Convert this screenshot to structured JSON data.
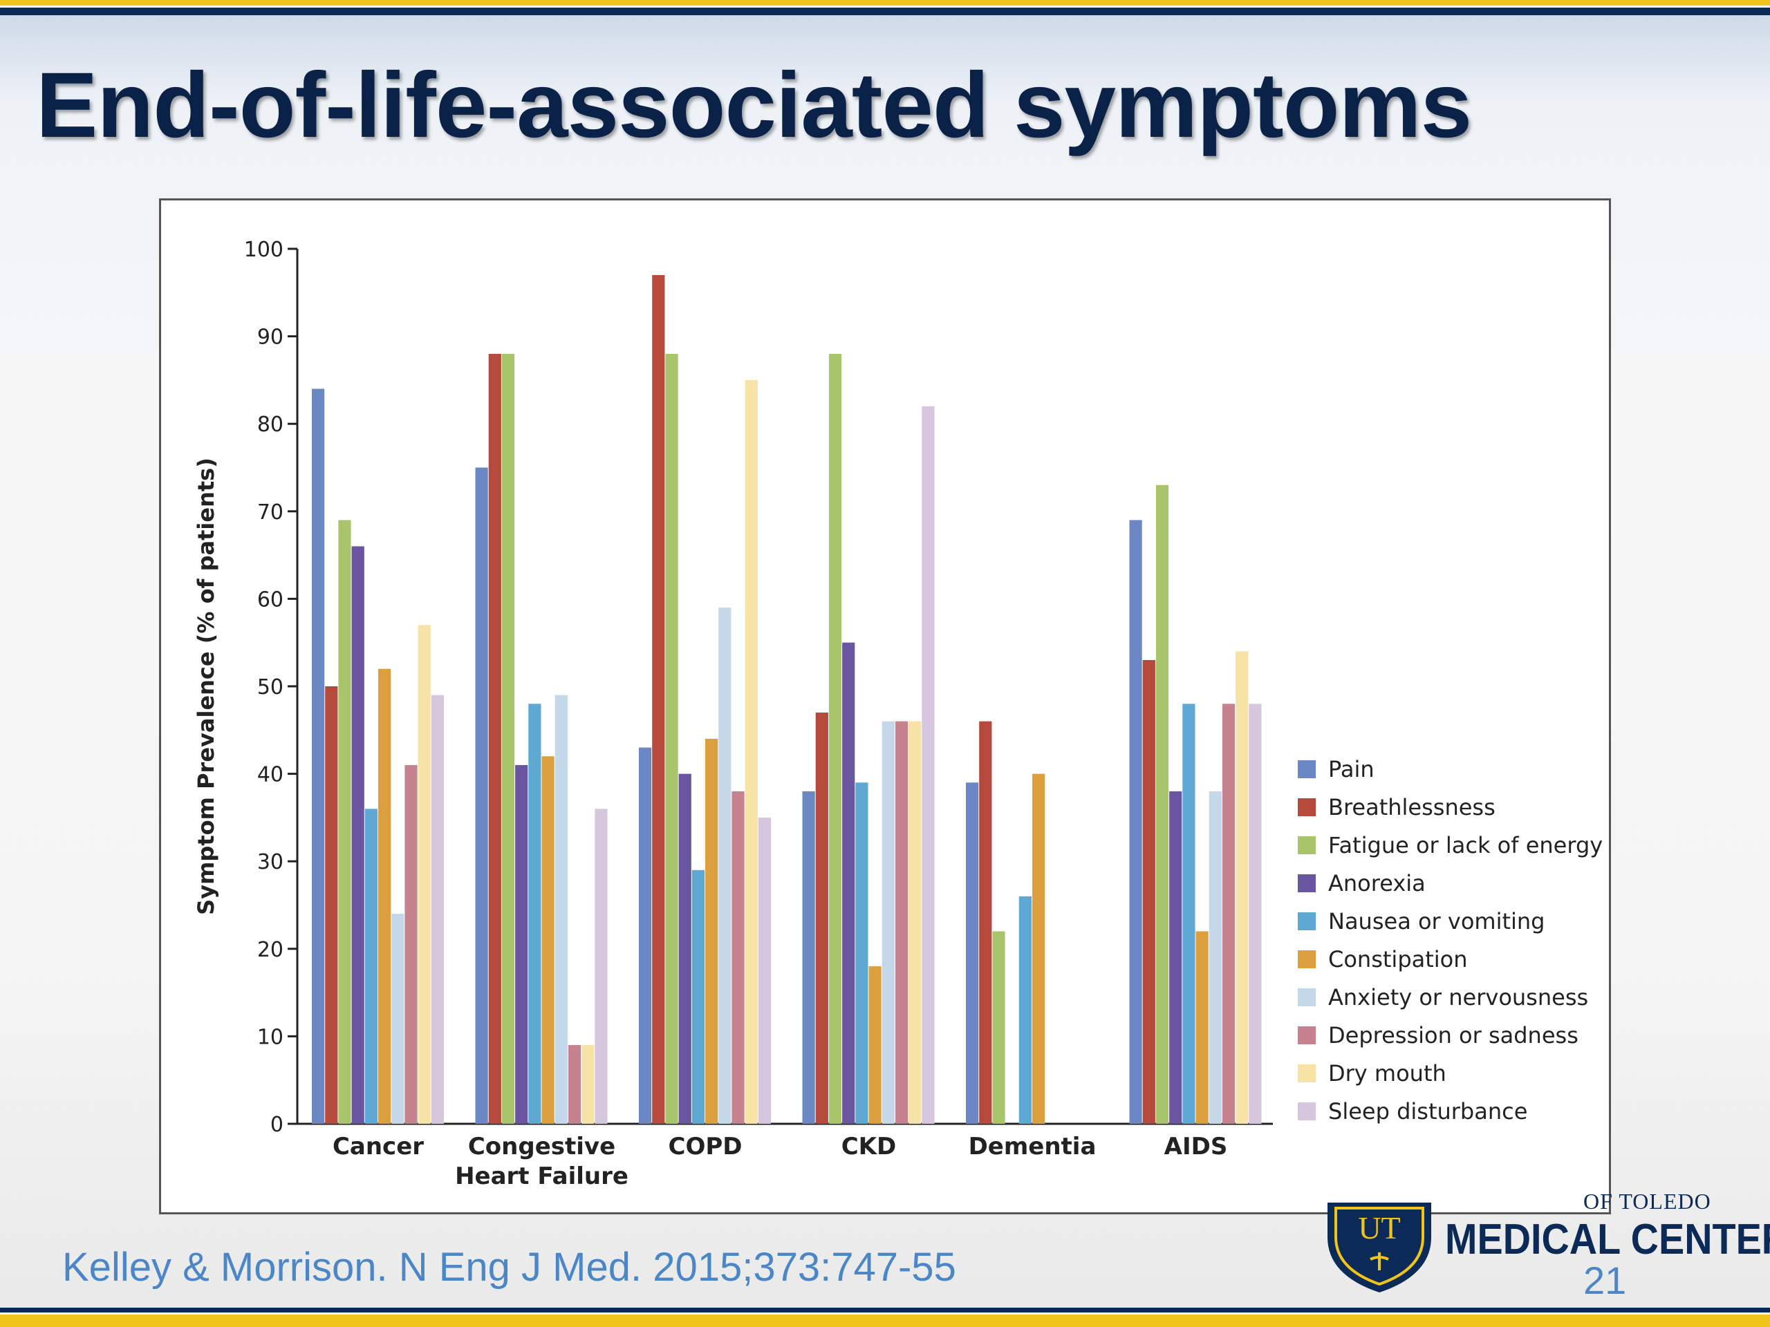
{
  "slide": {
    "title": "End-of-life-associated symptoms",
    "citation": "Kelley & Morrison.  N Eng J Med.  2015;373:747-55",
    "slide_number": "21",
    "logo_univ": "OF TOLEDO",
    "logo_center": "MEDICAL CENTER",
    "logo_shield_text": "UT"
  },
  "chart_data": {
    "type": "bar",
    "title": "",
    "xlabel": "",
    "ylabel": "Symptom Prevalence (% of patients)",
    "ylim": [
      0,
      100
    ],
    "yticks": [
      0,
      10,
      20,
      30,
      40,
      50,
      60,
      70,
      80,
      90,
      100
    ],
    "legend_position": "right",
    "categories": [
      [
        "Cancer"
      ],
      [
        "Congestive",
        "Heart Failure"
      ],
      [
        "COPD"
      ],
      [
        "CKD"
      ],
      [
        "Dementia"
      ],
      [
        "AIDS"
      ]
    ],
    "series": [
      {
        "name": "Pain",
        "color": "#6b87c4",
        "values": [
          84,
          75,
          43,
          38,
          39,
          69
        ]
      },
      {
        "name": "Breathlessness",
        "color": "#b54a3c",
        "values": [
          50,
          88,
          97,
          47,
          46,
          53
        ]
      },
      {
        "name": "Fatigue or lack of energy",
        "color": "#a8c56c",
        "values": [
          69,
          88,
          88,
          88,
          22,
          73
        ]
      },
      {
        "name": "Anorexia",
        "color": "#6a55a0",
        "values": [
          66,
          41,
          40,
          55,
          null,
          38
        ]
      },
      {
        "name": "Nausea or vomiting",
        "color": "#5ea9d4",
        "values": [
          36,
          48,
          29,
          39,
          26,
          48
        ]
      },
      {
        "name": "Constipation",
        "color": "#dc9f3e",
        "values": [
          52,
          42,
          44,
          18,
          40,
          22
        ]
      },
      {
        "name": "Anxiety or nervousness",
        "color": "#c4d8ea",
        "values": [
          24,
          49,
          59,
          46,
          null,
          38
        ]
      },
      {
        "name": "Depression or sadness",
        "color": "#c6838f",
        "values": [
          41,
          9,
          38,
          46,
          null,
          48
        ]
      },
      {
        "name": "Dry mouth",
        "color": "#f8e3a6",
        "values": [
          57,
          9,
          85,
          46,
          null,
          54
        ]
      },
      {
        "name": "Sleep disturbance",
        "color": "#d6c7de",
        "values": [
          49,
          36,
          35,
          82,
          null,
          48
        ]
      }
    ]
  }
}
